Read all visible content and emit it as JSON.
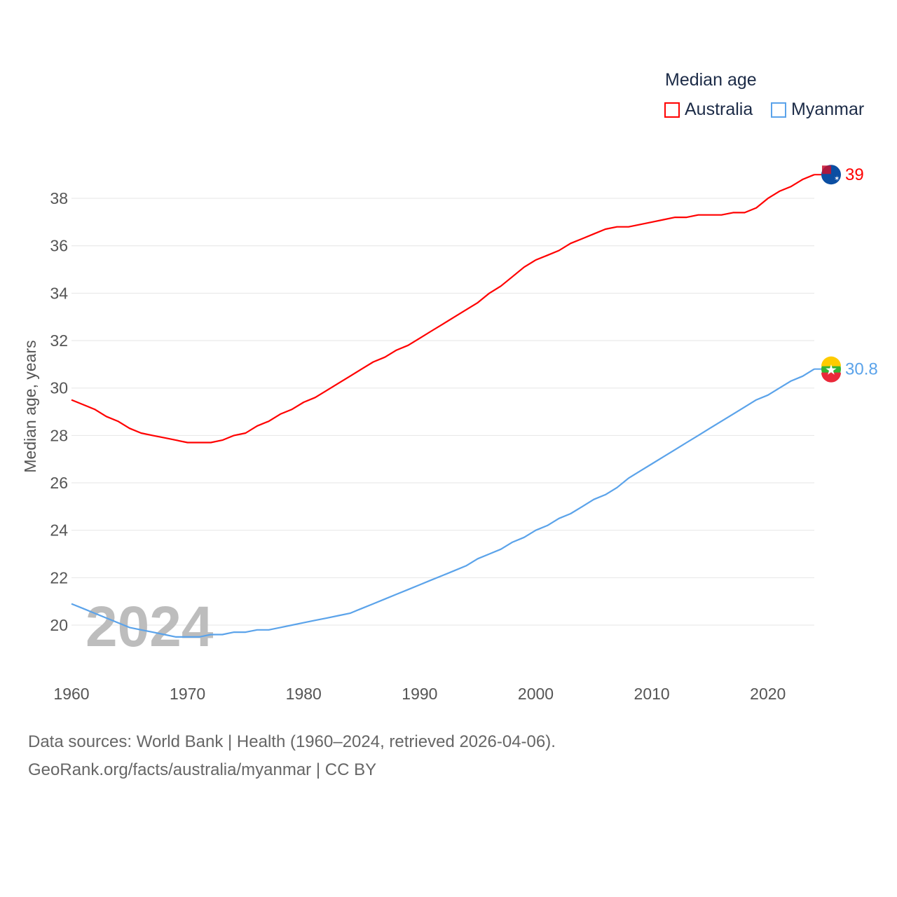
{
  "chart_data": {
    "type": "line",
    "legend_title": "Median age",
    "ylabel": "Median age, years",
    "xlabel": "",
    "xlim": [
      1960,
      2024
    ],
    "ylim": [
      18.5,
      40
    ],
    "yticks": [
      20,
      22,
      24,
      26,
      28,
      30,
      32,
      34,
      36,
      38
    ],
    "xticks": [
      1960,
      1970,
      1980,
      1990,
      2000,
      2010,
      2020
    ],
    "grid": true,
    "legend_placement": "top-right",
    "watermark_year": "2024",
    "x": [
      1960,
      1961,
      1962,
      1963,
      1964,
      1965,
      1966,
      1967,
      1968,
      1969,
      1970,
      1971,
      1972,
      1973,
      1974,
      1975,
      1976,
      1977,
      1978,
      1979,
      1980,
      1981,
      1982,
      1983,
      1984,
      1985,
      1986,
      1987,
      1988,
      1989,
      1990,
      1991,
      1992,
      1993,
      1994,
      1995,
      1996,
      1997,
      1998,
      1999,
      2000,
      2001,
      2002,
      2003,
      2004,
      2005,
      2006,
      2007,
      2008,
      2009,
      2010,
      2011,
      2012,
      2013,
      2014,
      2015,
      2016,
      2017,
      2018,
      2019,
      2020,
      2021,
      2022,
      2023,
      2024
    ],
    "series": [
      {
        "name": "Australia",
        "color": "#ff0000",
        "end_label": "39",
        "values": [
          29.5,
          29.3,
          29.1,
          28.8,
          28.6,
          28.3,
          28.1,
          28.0,
          27.9,
          27.8,
          27.7,
          27.7,
          27.7,
          27.8,
          28.0,
          28.1,
          28.4,
          28.6,
          28.9,
          29.1,
          29.4,
          29.6,
          29.9,
          30.2,
          30.5,
          30.8,
          31.1,
          31.3,
          31.6,
          31.8,
          32.1,
          32.4,
          32.7,
          33.0,
          33.3,
          33.6,
          34.0,
          34.3,
          34.7,
          35.1,
          35.4,
          35.6,
          35.8,
          36.1,
          36.3,
          36.5,
          36.7,
          36.8,
          36.8,
          36.9,
          37.0,
          37.1,
          37.2,
          37.2,
          37.3,
          37.3,
          37.3,
          37.4,
          37.4,
          37.6,
          38.0,
          38.3,
          38.5,
          38.8,
          39.0
        ]
      },
      {
        "name": "Myanmar",
        "color": "#5ba3ea",
        "end_label": "30.8",
        "values": [
          20.9,
          20.7,
          20.5,
          20.3,
          20.1,
          19.9,
          19.8,
          19.7,
          19.6,
          19.5,
          19.5,
          19.5,
          19.6,
          19.6,
          19.7,
          19.7,
          19.8,
          19.8,
          19.9,
          20.0,
          20.1,
          20.2,
          20.3,
          20.4,
          20.5,
          20.7,
          20.9,
          21.1,
          21.3,
          21.5,
          21.7,
          21.9,
          22.1,
          22.3,
          22.5,
          22.8,
          23.0,
          23.2,
          23.5,
          23.7,
          24.0,
          24.2,
          24.5,
          24.7,
          25.0,
          25.3,
          25.5,
          25.8,
          26.2,
          26.5,
          26.8,
          27.1,
          27.4,
          27.7,
          28.0,
          28.3,
          28.6,
          28.9,
          29.2,
          29.5,
          29.7,
          30.0,
          30.3,
          30.5,
          30.8
        ]
      }
    ]
  },
  "footer": {
    "line1": "Data sources: World Bank | Health (1960–2024, retrieved 2026-04-06).",
    "line2": "GeoRank.org/facts/australia/myanmar | CC BY"
  }
}
